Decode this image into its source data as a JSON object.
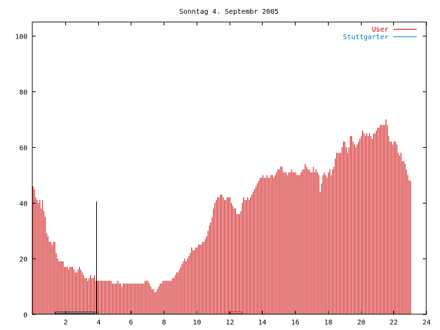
{
  "chart_data": {
    "type": "bar",
    "title": "Sonntag 4. Septembr 2005",
    "xlim": [
      0,
      24
    ],
    "ylim": [
      0,
      105
    ],
    "x_ticks": [
      2,
      4,
      6,
      8,
      10,
      12,
      14,
      16,
      18,
      20,
      22,
      24
    ],
    "y_ticks": [
      0,
      20,
      40,
      60,
      80,
      100
    ],
    "grid": false,
    "legend_position": "top-right",
    "series": [
      {
        "name": "User",
        "color": "#cc0000",
        "interval_minutes": 5,
        "values": [
          46,
          45,
          42,
          41,
          40,
          41,
          38,
          41,
          37,
          35,
          29,
          28,
          26,
          26,
          25,
          26,
          26,
          22,
          20,
          19,
          19,
          19,
          19,
          17,
          17,
          17,
          16,
          17,
          17,
          17,
          16,
          15,
          15,
          16,
          17,
          16,
          15,
          14,
          13,
          13,
          12,
          13,
          14,
          13,
          13,
          14,
          12,
          12,
          12,
          12,
          12,
          12,
          12,
          12,
          12,
          12,
          12,
          12,
          11,
          11,
          11,
          11,
          12,
          11,
          11,
          10,
          11,
          11,
          11,
          11,
          11,
          11,
          11,
          11,
          11,
          11,
          11,
          11,
          11,
          11,
          11,
          11,
          12,
          12,
          12,
          11,
          10,
          9,
          9,
          8,
          8,
          9,
          10,
          11,
          11,
          12,
          12,
          12,
          12,
          12,
          12,
          12,
          13,
          13,
          14,
          15,
          15,
          16,
          17,
          18,
          19,
          20,
          19,
          20,
          21,
          22,
          24,
          23,
          23,
          24,
          24,
          25,
          25,
          25,
          26,
          26,
          27,
          28,
          30,
          32,
          33,
          35,
          38,
          40,
          41,
          42,
          42,
          43,
          43,
          42,
          41,
          41,
          42,
          42,
          42,
          40,
          39,
          38,
          38,
          36,
          36,
          36,
          37,
          40,
          42,
          41,
          41,
          42,
          41,
          42,
          43,
          44,
          45,
          46,
          47,
          48,
          49,
          49,
          50,
          49,
          49,
          50,
          49,
          49,
          50,
          50,
          49,
          50,
          51,
          52,
          52,
          53,
          53,
          51,
          51,
          51,
          50,
          51,
          51,
          52,
          51,
          51,
          51,
          50,
          50,
          50,
          51,
          52,
          52,
          54,
          53,
          52,
          52,
          51,
          51,
          53,
          51,
          52,
          51,
          50,
          44,
          47,
          50,
          51,
          50,
          49,
          51,
          52,
          50,
          52,
          53,
          56,
          58,
          58,
          58,
          58,
          60,
          62,
          62,
          60,
          58,
          60,
          64,
          64,
          62,
          61,
          60,
          61,
          62,
          63,
          64,
          66,
          65,
          64,
          65,
          64,
          65,
          64,
          63,
          65,
          65,
          66,
          67,
          67,
          68,
          68,
          68,
          68,
          70,
          68,
          64,
          62,
          62,
          61,
          62,
          62,
          61,
          58,
          57,
          58,
          55,
          55,
          54,
          52,
          50,
          48,
          48
        ]
      },
      {
        "name": "Stuttgarter",
        "color": "#0080c0",
        "interval_minutes": 5,
        "values": []
      }
    ]
  },
  "markers": [
    {
      "name": "marker-a",
      "color": "#000000",
      "x_start": 1.4,
      "x_end": 3.8
    },
    {
      "name": "marker-b",
      "color": "#cc0000",
      "x_start": 12.0,
      "x_end": 12.8
    }
  ],
  "vertical_lines": [
    {
      "x": 3.9,
      "color": "#000000"
    },
    {
      "x": 12.0,
      "color": "#cc0000"
    },
    {
      "x": 20.1,
      "color": "#cc0000"
    }
  ]
}
